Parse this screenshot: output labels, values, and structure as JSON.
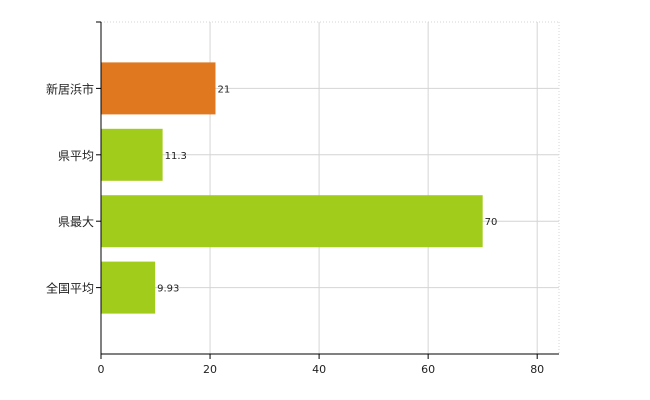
{
  "chart_data": {
    "type": "bar",
    "orientation": "horizontal",
    "categories": [
      "新居浜市",
      "県平均",
      "県最大",
      "全国平均"
    ],
    "values": [
      21,
      11.3,
      70,
      9.93
    ],
    "value_labels": [
      "21",
      "11.3",
      "70",
      "9.93"
    ],
    "bar_colors": [
      "#e07820",
      "#a2cc1c",
      "#a2cc1c",
      "#a2cc1c"
    ],
    "xlim": [
      0,
      84
    ],
    "x_ticks": [
      0,
      20,
      40,
      60,
      80
    ],
    "x_tick_labels": [
      "0",
      "20",
      "40",
      "60",
      "80"
    ],
    "grid": true,
    "legend": "none"
  }
}
